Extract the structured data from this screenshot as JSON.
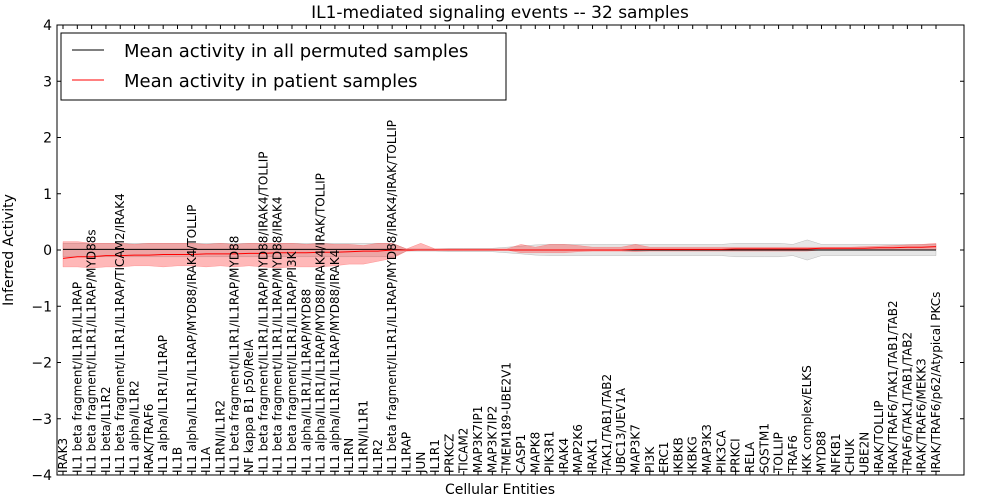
{
  "chart_data": {
    "type": "line",
    "title": "IL1-mediated signaling events -- 32 samples",
    "xlabel": "Cellular Entities",
    "ylabel": "Inferred Activity",
    "ylim": [
      -4,
      4
    ],
    "yticks": [
      -4,
      -3,
      -2,
      -1,
      0,
      1,
      2,
      3,
      4
    ],
    "ytick_labels": [
      "−4",
      "−3",
      "−2",
      "−1",
      "0",
      "1",
      "2",
      "3",
      "4"
    ],
    "legend_position": "top-left",
    "categories": [
      "IRAK3",
      "IL1 beta fragment/IL1R1/IL1RAP",
      "IL1 beta fragment/IL1R1/IL1RAP/MYD88s",
      "IL1 beta/IL1R2",
      "IL1 beta fragment/IL1R1/IL1RAP/TICAM2/IRAK4",
      "IL1 alpha/IL1R2",
      "IRAK/TRAF6",
      "IL1 alpha/IL1R1/IL1RAP",
      "IL1B",
      "IL1 alpha/IL1R1/IL1RAP/MYD88/IRAK4/TOLLIP",
      "IL1A",
      "IL1RN/IL1R2",
      "IL1 beta fragment/IL1R1/IL1RAP/MYD88",
      "NF kappa B1 p50/RelA",
      "IL1 beta fragment/IL1R1/IL1RAP/MYD88/IRAK4/TOLLIP",
      "IL1 beta fragment/IL1R1/IL1RAP/MYD88/IRAK4",
      "IL1 beta fragment/IL1R1/IL1RAP/PI3K",
      "IL1 alpha/IL1R1/IL1RAP/MYD88",
      "IL1 alpha/IL1R1/IL1RAP/MYD88/IRAK4/IRAK/TOLLIP",
      "IL1 alpha/IL1R1/IL1RAP/MYD88/IRAK4",
      "IL1RN",
      "IL1RN/IL1R1",
      "IL1R2",
      "IL1 beta fragment/IL1R1/IL1RAP/MYD88/IRAK4/IRAK/TOLLIP",
      "IL1RAP",
      "JUN",
      "IL1R1",
      "PRKCZ",
      "TICAM2",
      "MAP3K7IP1",
      "MAP3K7IP2",
      "TMEM189-UBE2V1",
      "CASP1",
      "MAPK8",
      "PIK3R1",
      "IRAK4",
      "MAP2K6",
      "IRAK1",
      "TAK1/TAB1/TAB2",
      "UBC13/UEV1A",
      "MAP3K7",
      "PI3K",
      "ERC1",
      "IKBKB",
      "IKBKG",
      "MAP3K3",
      "PIK3CA",
      "PRKCI",
      "RELA",
      "SQSTM1",
      "TOLLIP",
      "TRAF6",
      "IKK complex/ELKS",
      "MYD88",
      "NFKB1",
      "CHUK",
      "UBE2N",
      "IRAK/TOLLIP",
      "IRAK/TRAF6/TAK1/TAB1/TAB2",
      "TRAF6/TAK1/TAB1/TAB2",
      "IRAK/TRAF6/MEKK3",
      "IRAK/TRAF6/p62/Atypical PKCs"
    ],
    "series": [
      {
        "name": "Mean activity in all permuted samples",
        "color": "#000000",
        "values": [
          0.01,
          0.01,
          0.01,
          0.01,
          0.01,
          0.01,
          0.01,
          0.01,
          0.01,
          0.01,
          0.01,
          0.01,
          0.01,
          0.01,
          0.01,
          0.01,
          0.01,
          0.01,
          0.01,
          0.01,
          0.01,
          0.01,
          0.01,
          0.01,
          0.0,
          0.0,
          0.0,
          0.0,
          0.0,
          0.0,
          0.0,
          0.0,
          0.0,
          0.0,
          0.0,
          0.0,
          0.0,
          0.0,
          0.0,
          0.0,
          0.0,
          0.0,
          0.0,
          0.0,
          0.0,
          0.0,
          0.0,
          0.0,
          0.0,
          0.0,
          0.0,
          0.0,
          0.0,
          0.0,
          0.0,
          0.0,
          0.0,
          0.0,
          0.0,
          0.0,
          0.0,
          0.0
        ],
        "band_lower": [
          -0.12,
          -0.12,
          -0.12,
          -0.12,
          -0.12,
          -0.12,
          -0.12,
          -0.12,
          -0.12,
          -0.12,
          -0.12,
          -0.12,
          -0.12,
          -0.12,
          -0.12,
          -0.12,
          -0.12,
          -0.12,
          -0.12,
          -0.12,
          -0.12,
          -0.12,
          -0.12,
          -0.12,
          -0.02,
          -0.02,
          -0.02,
          -0.03,
          -0.03,
          -0.03,
          -0.03,
          -0.05,
          -0.07,
          -0.09,
          -0.1,
          -0.1,
          -0.1,
          -0.1,
          -0.1,
          -0.1,
          -0.1,
          -0.1,
          -0.1,
          -0.1,
          -0.1,
          -0.1,
          -0.1,
          -0.12,
          -0.12,
          -0.12,
          -0.12,
          -0.1,
          -0.18,
          -0.1,
          -0.1,
          -0.1,
          -0.1,
          -0.1,
          -0.1,
          -0.1,
          -0.1,
          -0.1
        ],
        "band_upper": [
          0.12,
          0.12,
          0.12,
          0.12,
          0.12,
          0.12,
          0.12,
          0.12,
          0.12,
          0.12,
          0.12,
          0.12,
          0.12,
          0.12,
          0.12,
          0.12,
          0.12,
          0.12,
          0.12,
          0.12,
          0.12,
          0.12,
          0.12,
          0.12,
          0.02,
          0.02,
          0.02,
          0.03,
          0.03,
          0.03,
          0.03,
          0.05,
          0.07,
          0.09,
          0.1,
          0.1,
          0.1,
          0.1,
          0.1,
          0.1,
          0.1,
          0.1,
          0.1,
          0.1,
          0.1,
          0.1,
          0.1,
          0.12,
          0.12,
          0.12,
          0.12,
          0.1,
          0.18,
          0.1,
          0.1,
          0.1,
          0.1,
          0.1,
          0.1,
          0.1,
          0.1,
          0.1
        ]
      },
      {
        "name": "Mean activity in patient samples",
        "color": "#ff0000",
        "values": [
          -0.15,
          -0.12,
          -0.12,
          -0.1,
          -0.1,
          -0.09,
          -0.09,
          -0.08,
          -0.08,
          -0.08,
          -0.07,
          -0.07,
          -0.07,
          -0.06,
          -0.06,
          -0.05,
          -0.05,
          -0.05,
          -0.04,
          -0.04,
          -0.03,
          -0.02,
          -0.02,
          0.0,
          0.0,
          0.0,
          0.0,
          0.0,
          0.0,
          0.0,
          0.0,
          0.0,
          0.0,
          0.0,
          0.0,
          0.0,
          0.0,
          0.0,
          0.0,
          0.0,
          0.01,
          0.01,
          0.01,
          0.01,
          0.01,
          0.01,
          0.01,
          0.02,
          0.02,
          0.02,
          0.02,
          0.02,
          0.02,
          0.03,
          0.03,
          0.03,
          0.03,
          0.04,
          0.04,
          0.05,
          0.05,
          0.06
        ],
        "band_lower": [
          -0.3,
          -0.3,
          -0.32,
          -0.3,
          -0.3,
          -0.28,
          -0.28,
          -0.3,
          -0.28,
          -0.28,
          -0.3,
          -0.28,
          -0.3,
          -0.28,
          -0.3,
          -0.32,
          -0.3,
          -0.3,
          -0.3,
          -0.28,
          -0.25,
          -0.25,
          -0.2,
          -0.15,
          -0.02,
          0.0,
          0.0,
          0.0,
          0.0,
          0.0,
          0.0,
          0.0,
          -0.05,
          -0.05,
          -0.05,
          -0.05,
          -0.03,
          -0.02,
          -0.02,
          -0.02,
          -0.03,
          -0.02,
          -0.02,
          -0.02,
          -0.02,
          -0.02,
          -0.02,
          -0.02,
          -0.02,
          -0.02,
          -0.02,
          -0.02,
          -0.02,
          0.0,
          0.0,
          0.0,
          0.0,
          0.0,
          0.0,
          0.0,
          0.0,
          0.0
        ],
        "band_upper": [
          0.15,
          0.15,
          0.12,
          0.12,
          0.12,
          0.1,
          0.12,
          0.12,
          0.12,
          0.12,
          0.1,
          0.12,
          0.1,
          0.12,
          0.12,
          0.12,
          0.12,
          0.1,
          0.12,
          0.1,
          0.1,
          0.08,
          0.12,
          0.12,
          0.02,
          0.12,
          0.02,
          0.02,
          0.02,
          0.02,
          0.02,
          0.02,
          0.1,
          0.05,
          0.1,
          0.1,
          0.08,
          0.05,
          0.05,
          0.05,
          0.1,
          0.05,
          0.05,
          0.05,
          0.05,
          0.05,
          0.05,
          0.05,
          0.05,
          0.05,
          0.05,
          0.05,
          0.05,
          0.05,
          0.05,
          0.05,
          0.06,
          0.07,
          0.08,
          0.09,
          0.1,
          0.12
        ]
      }
    ]
  }
}
